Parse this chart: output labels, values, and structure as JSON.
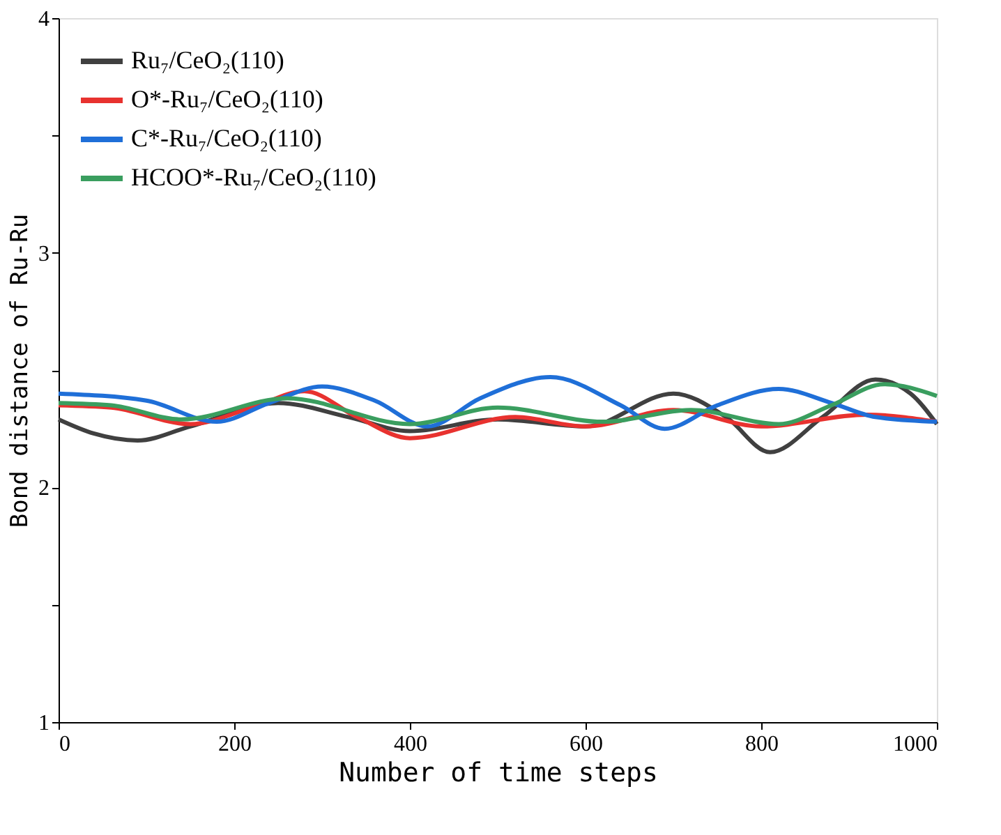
{
  "chart_data": {
    "type": "line",
    "xlabel": "Number of time steps",
    "ylabel": "Bond distance of Ru-Ru",
    "xlim": [
      0,
      1000
    ],
    "xticks": [
      0,
      200,
      400,
      600,
      800,
      1000
    ],
    "ylim": [
      1,
      4
    ],
    "yticks": [
      1,
      {
        "value": 1.5,
        "label": null
      },
      2,
      {
        "value": 2.5,
        "label": null
      },
      3,
      {
        "value": 3.5,
        "label": null
      },
      4
    ],
    "grid": false,
    "legend": "top left",
    "line_style": "solid",
    "marker": "none",
    "series": [
      {
        "name": "Ru₇/CeO₂(110)",
        "color": "#404040",
        "x": [
          0,
          40,
          90,
          150,
          250,
          330,
          400,
          500,
          600,
          700,
          760,
          810,
          870,
          930,
          970,
          1000
        ],
        "values": [
          2.29,
          2.23,
          2.2,
          2.26,
          2.36,
          2.3,
          2.24,
          2.29,
          2.26,
          2.4,
          2.3,
          2.15,
          2.3,
          2.46,
          2.4,
          2.27
        ]
      },
      {
        "name": "O*-Ru₇/CeO₂(110)",
        "color": "#e8322f",
        "x": [
          0,
          60,
          150,
          220,
          280,
          340,
          400,
          520,
          600,
          700,
          800,
          920,
          1000
        ],
        "values": [
          2.35,
          2.34,
          2.27,
          2.34,
          2.41,
          2.3,
          2.21,
          2.3,
          2.26,
          2.33,
          2.26,
          2.31,
          2.28
        ]
      },
      {
        "name": "C*-Ru₇/CeO₂(110)",
        "color": "#1f6fd8",
        "x": [
          0,
          100,
          180,
          240,
          300,
          360,
          420,
          480,
          560,
          640,
          690,
          750,
          820,
          880,
          930,
          1000
        ],
        "values": [
          2.4,
          2.37,
          2.28,
          2.36,
          2.43,
          2.37,
          2.26,
          2.38,
          2.47,
          2.35,
          2.25,
          2.35,
          2.42,
          2.36,
          2.3,
          2.28
        ]
      },
      {
        "name": "HCOO*-Ru₇/CeO₂(110)",
        "color": "#3a9e5f",
        "x": [
          0,
          60,
          140,
          260,
          400,
          500,
          620,
          720,
          820,
          880,
          940,
          1000
        ],
        "values": [
          2.36,
          2.35,
          2.29,
          2.38,
          2.27,
          2.34,
          2.28,
          2.33,
          2.27,
          2.35,
          2.44,
          2.39
        ]
      }
    ]
  }
}
